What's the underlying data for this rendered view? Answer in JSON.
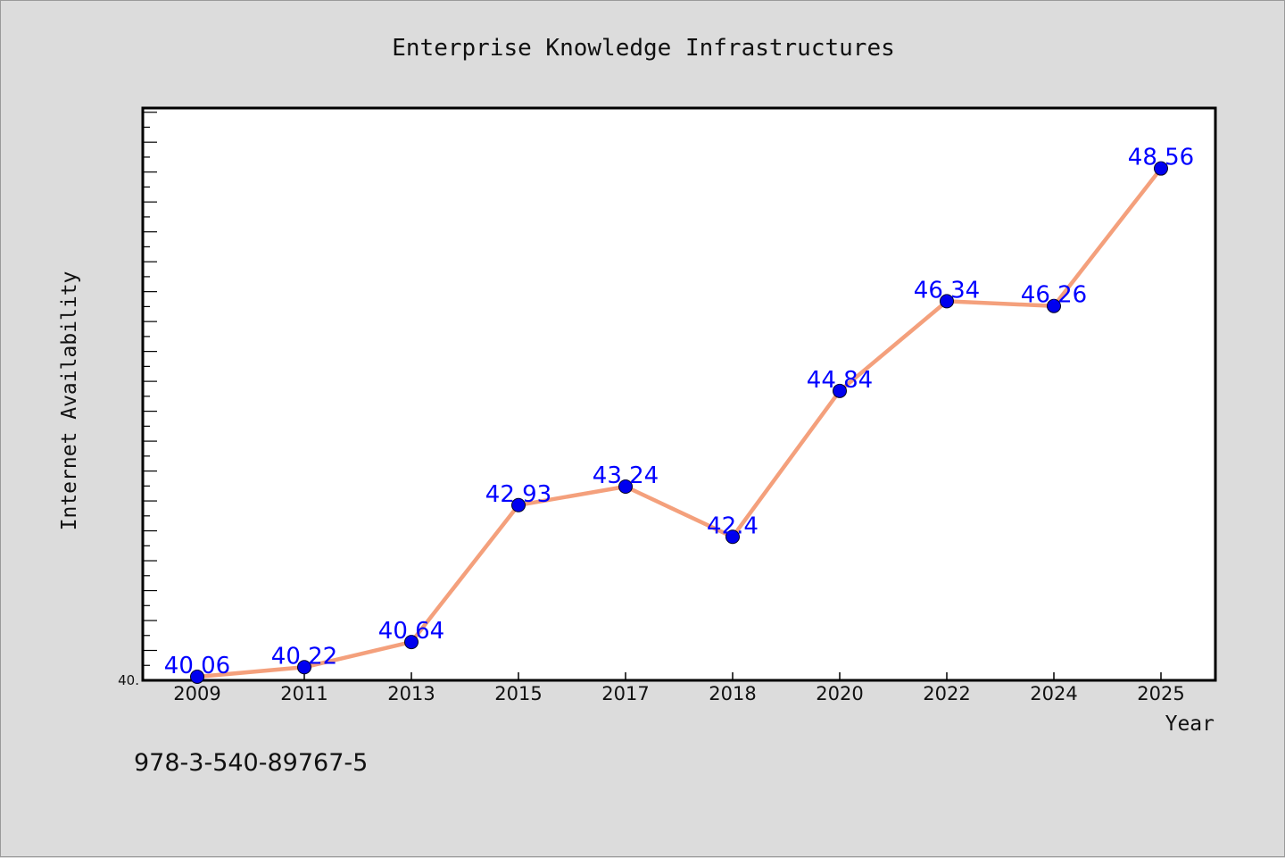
{
  "chart_data": {
    "type": "line",
    "title": "Enterprise Knowledge Infrastructures",
    "xlabel": "Year",
    "ylabel": "Internet Availability",
    "categories": [
      "2009",
      "2011",
      "2013",
      "2015",
      "2017",
      "2018",
      "2020",
      "2022",
      "2024",
      "2025"
    ],
    "series": [
      {
        "values": [
          40.06,
          40.22,
          40.64,
          42.93,
          43.24,
          42.4,
          44.84,
          46.34,
          46.26,
          48.56
        ],
        "data_labels": [
          "40.06",
          "40.22",
          "40.64",
          "42.93",
          "43.24",
          "42.4",
          "44.84",
          "46.34",
          "46.26",
          "48.56"
        ],
        "line_color": "#f4a07c",
        "marker_color": "#0000ee"
      }
    ],
    "ylim": [
      40.0,
      49.5
    ],
    "y_tick_label": "40.",
    "label_color": "#0000ff",
    "grid": false,
    "legend": "none"
  },
  "footer": {
    "isbn": "978-3-540-89767-5"
  }
}
